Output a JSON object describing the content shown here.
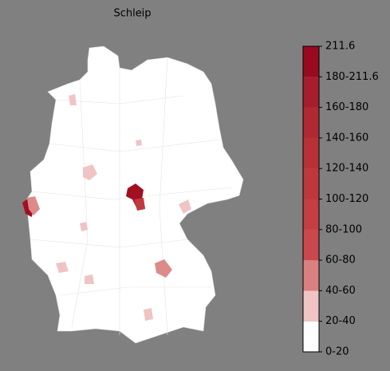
{
  "title": "Schleip",
  "colorbar": {
    "bins": [
      0,
      20,
      40,
      60,
      80,
      100,
      120,
      140,
      160,
      180,
      211.6
    ],
    "colors": [
      "#ffffff",
      "#f0c4c4",
      "#db8080",
      "#c9484b",
      "#c43e42",
      "#be373b",
      "#b83036",
      "#b02831",
      "#a81d2b",
      "#9a0a1f"
    ],
    "tick_labels": [
      "0-20",
      "20-40",
      "40-60",
      "60-80",
      "80-100",
      "100-120",
      "120-140",
      "140-160",
      "160-180",
      "180-211.6",
      "211.6"
    ]
  }
}
